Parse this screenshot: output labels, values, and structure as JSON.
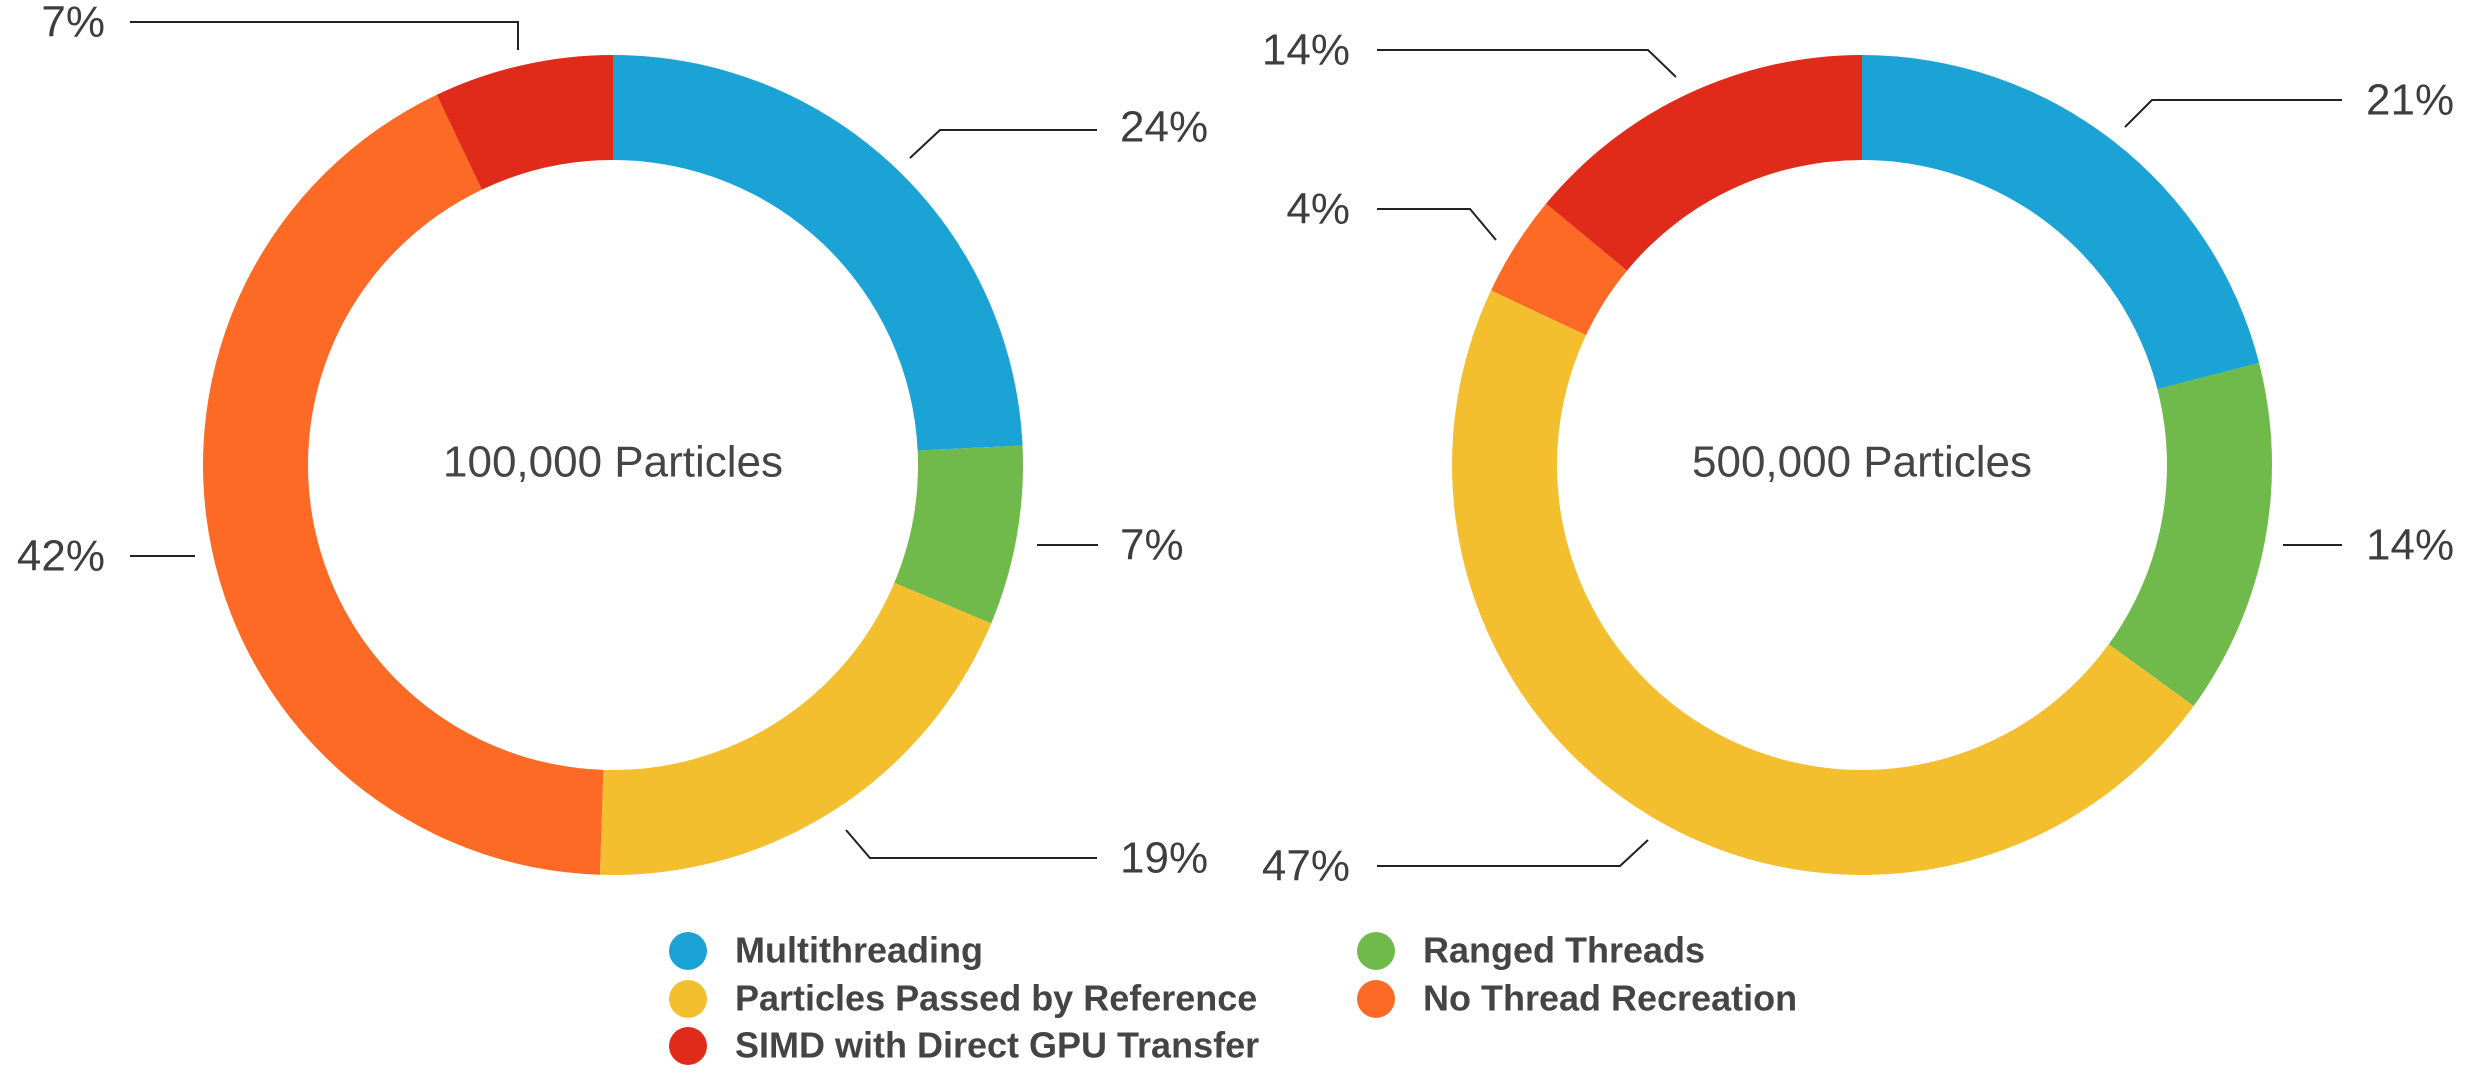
{
  "chart_data": [
    {
      "type": "pie",
      "style": "donut",
      "title": "100,000 Particles",
      "categories": [
        "Multithreading",
        "Ranged Threads",
        "Particles Passed by Reference",
        "No Thread Recreation",
        "SIMD with Direct GPU Transfer"
      ],
      "values": [
        24,
        7,
        19,
        42,
        7
      ],
      "labels": [
        "24%",
        "7%",
        "19%",
        "42%",
        "7%"
      ]
    },
    {
      "type": "pie",
      "style": "donut",
      "title": "500,000 Particles",
      "categories": [
        "Multithreading",
        "Ranged Threads",
        "Particles Passed by Reference",
        "No Thread Recreation",
        "SIMD with Direct GPU Transfer"
      ],
      "values": [
        21,
        14,
        47,
        4,
        14
      ],
      "labels": [
        "21%",
        "14%",
        "47%",
        "4%",
        "14%"
      ]
    }
  ],
  "legend": {
    "placement": "bottom-center",
    "items": [
      {
        "label": "Multithreading",
        "color": "#1ba3d6"
      },
      {
        "label": "Ranged Threads",
        "color": "#70b94b"
      },
      {
        "label": "Particles Passed by Reference",
        "color": "#f4bf2e"
      },
      {
        "label": "No Thread Recreation",
        "color": "#fd6a25"
      },
      {
        "label": "SIMD with Direct GPU Transfer",
        "color": "#e02b1a"
      }
    ]
  },
  "colors": {
    "Multithreading": "#1ba3d6",
    "Ranged Threads": "#70b94b",
    "Particles Passed by Reference": "#f4bf2e",
    "No Thread Recreation": "#fd6a25",
    "SIMD with Direct GPU Transfer": "#e02b1a"
  }
}
